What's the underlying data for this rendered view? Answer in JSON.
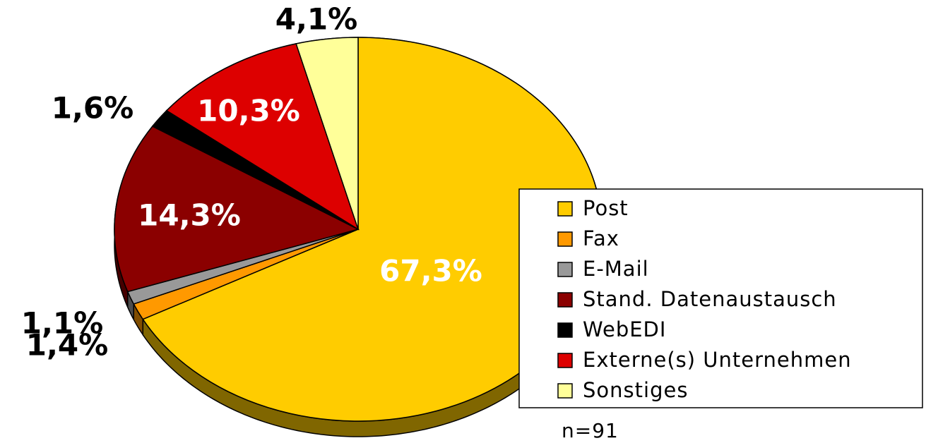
{
  "chart_data": {
    "type": "pie",
    "categories": [
      "Post",
      "Fax",
      "E-Mail",
      "Stand. Datenaustausch",
      "WebEDI",
      "Externe(s) Unternehmen",
      "Sonstiges"
    ],
    "values": [
      67.3,
      1.4,
      1.1,
      14.3,
      1.6,
      10.3,
      4.1
    ],
    "value_labels": [
      "67,3%",
      "1,4%",
      "1,1%",
      "14,3%",
      "1,6%",
      "10,3%",
      "4,1%"
    ],
    "colors": [
      "#ffcc00",
      "#ff9900",
      "#999999",
      "#8b0000",
      "#000000",
      "#dd0000",
      "#ffff99"
    ],
    "annotation": "n=91"
  }
}
